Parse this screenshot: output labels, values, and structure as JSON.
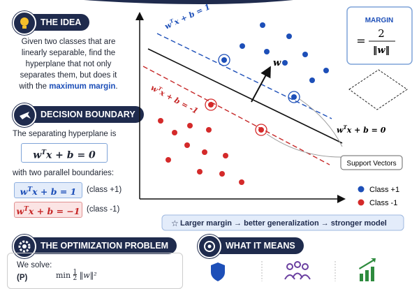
{
  "idea": {
    "title": "THE IDEA",
    "text_before": "Given two classes that are linearly separable, find the hyperplane that not only separates them, but does it with the ",
    "highlight": "maximum margin",
    "text_after": "."
  },
  "decision_boundary": {
    "title": "DECISION BOUNDARY",
    "intro": "The separating hyperplane is",
    "equation": {
      "w": "w",
      "t": "T",
      "rest": "x + b = 0"
    },
    "between": "with two parallel boundaries:",
    "boundaries": [
      {
        "w": "w",
        "t": "T",
        "rest": "x + b = 1",
        "note": "(class +1)"
      },
      {
        "w": "w",
        "t": "T",
        "rest": "x + b = −1",
        "note": "(class -1)"
      }
    ]
  },
  "diagram": {
    "upper_line": {
      "w": "w",
      "t": "T",
      "rest": "x + b = 1"
    },
    "lower_line": {
      "w": "w",
      "t": "T",
      "rest": "x + b = -1"
    },
    "normal": "w",
    "hyperplane": {
      "w": "w",
      "t": "T",
      "rest": "x + b = 0"
    },
    "callout": "Support Vectors",
    "legend": [
      "Class +1",
      "Class -1"
    ]
  },
  "margin": {
    "title": "MARGIN",
    "eq": "=",
    "numerator": "2",
    "denominator": "‖w‖"
  },
  "banner": {
    "parts": [
      "Larger margin",
      "→",
      "better generalization",
      "→",
      "stronger model"
    ]
  },
  "optimization": {
    "title": "THE OPTIMIZATION PROBLEM",
    "intro": "We solve:",
    "label": "(P)",
    "op": "min",
    "numerator": "1",
    "denominator": "2",
    "objective": "‖w‖²"
  },
  "meaning": {
    "title": "WHAT IT MEANS"
  }
}
